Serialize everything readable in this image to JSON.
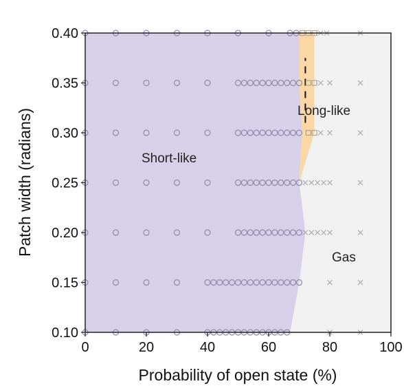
{
  "chart_data": {
    "type": "scatter",
    "xlabel": "Probability of open state (%)",
    "ylabel": "Patch width (radians)",
    "xlim": [
      0,
      100
    ],
    "ylim": [
      0.1,
      0.4
    ],
    "xticks": [
      "0",
      "20",
      "40",
      "60",
      "80",
      "100"
    ],
    "yticks": [
      "0.10",
      "0.15",
      "0.20",
      "0.25",
      "0.30",
      "0.35",
      "0.40"
    ],
    "grid": false,
    "legend": "none",
    "region_labels": {
      "short": "Short-like",
      "long": "Long-like",
      "gas": "Gas"
    },
    "colors": {
      "short": "#d6d1e9",
      "long": "#fcd7a6",
      "gas": "#f1f1f1",
      "circle": "#8f8aaa",
      "square": "#b0a594",
      "cross": "#a8a8a8"
    },
    "regions": {
      "short_boundary": [
        [
          0.1,
          67
        ],
        [
          0.15,
          70
        ],
        [
          0.2,
          72
        ],
        [
          0.25,
          70
        ],
        [
          0.3,
          71
        ],
        [
          0.35,
          70
        ],
        [
          0.4,
          70
        ]
      ],
      "long_boundary": [
        [
          0.25,
          70
        ],
        [
          0.3,
          75
        ],
        [
          0.35,
          75
        ],
        [
          0.4,
          75
        ]
      ]
    },
    "dashed_line": {
      "x": 72,
      "y": [
        0.31,
        0.375
      ]
    },
    "series": [
      {
        "marker": "circle",
        "y": 0.4,
        "x": [
          0,
          10,
          20,
          30,
          40,
          50,
          60,
          67,
          69
        ]
      },
      {
        "marker": "square",
        "y": 0.4,
        "x": [
          71,
          73,
          75
        ]
      },
      {
        "marker": "cross",
        "y": 0.4,
        "x": [
          77,
          79,
          90
        ]
      },
      {
        "marker": "circle",
        "y": 0.35,
        "x": [
          0,
          10,
          20,
          30,
          40,
          50,
          52,
          54,
          56,
          58,
          60,
          62,
          64,
          66,
          68,
          70
        ]
      },
      {
        "marker": "square",
        "y": 0.35,
        "x": [
          73,
          75
        ]
      },
      {
        "marker": "cross",
        "y": 0.35,
        "x": [
          77,
          80,
          90
        ]
      },
      {
        "marker": "circle",
        "y": 0.3,
        "x": [
          0,
          10,
          20,
          30,
          40,
          50,
          52,
          54,
          56,
          58,
          60,
          62,
          64,
          66,
          68,
          70
        ]
      },
      {
        "marker": "square",
        "y": 0.3,
        "x": [
          73,
          75
        ]
      },
      {
        "marker": "cross",
        "y": 0.3,
        "x": [
          77,
          80,
          90
        ]
      },
      {
        "marker": "circle",
        "y": 0.25,
        "x": [
          0,
          10,
          20,
          30,
          40,
          50,
          52,
          54,
          56,
          58,
          60,
          62,
          64,
          66,
          68,
          70
        ]
      },
      {
        "marker": "cross",
        "y": 0.25,
        "x": [
          72,
          74,
          76,
          78,
          80,
          90
        ]
      },
      {
        "marker": "circle",
        "y": 0.2,
        "x": [
          0,
          10,
          20,
          30,
          40,
          50,
          52,
          54,
          56,
          58,
          60,
          62,
          64,
          66,
          68,
          70
        ]
      },
      {
        "marker": "cross",
        "y": 0.2,
        "x": [
          72,
          74,
          76,
          78,
          80,
          90
        ]
      },
      {
        "marker": "circle",
        "y": 0.15,
        "x": [
          0,
          10,
          20,
          30,
          40,
          42,
          44,
          46,
          48,
          50,
          52,
          54,
          56,
          58,
          60,
          62,
          64,
          66,
          68,
          70
        ]
      },
      {
        "marker": "cross",
        "y": 0.15,
        "x": [
          80,
          90
        ]
      },
      {
        "marker": "circle",
        "y": 0.1,
        "x": [
          0,
          10,
          20,
          30,
          40,
          42,
          44,
          46,
          48,
          50,
          52,
          54,
          56,
          58,
          60,
          62,
          64,
          66
        ]
      },
      {
        "marker": "cross",
        "y": 0.1,
        "x": [
          80,
          90
        ]
      }
    ]
  }
}
